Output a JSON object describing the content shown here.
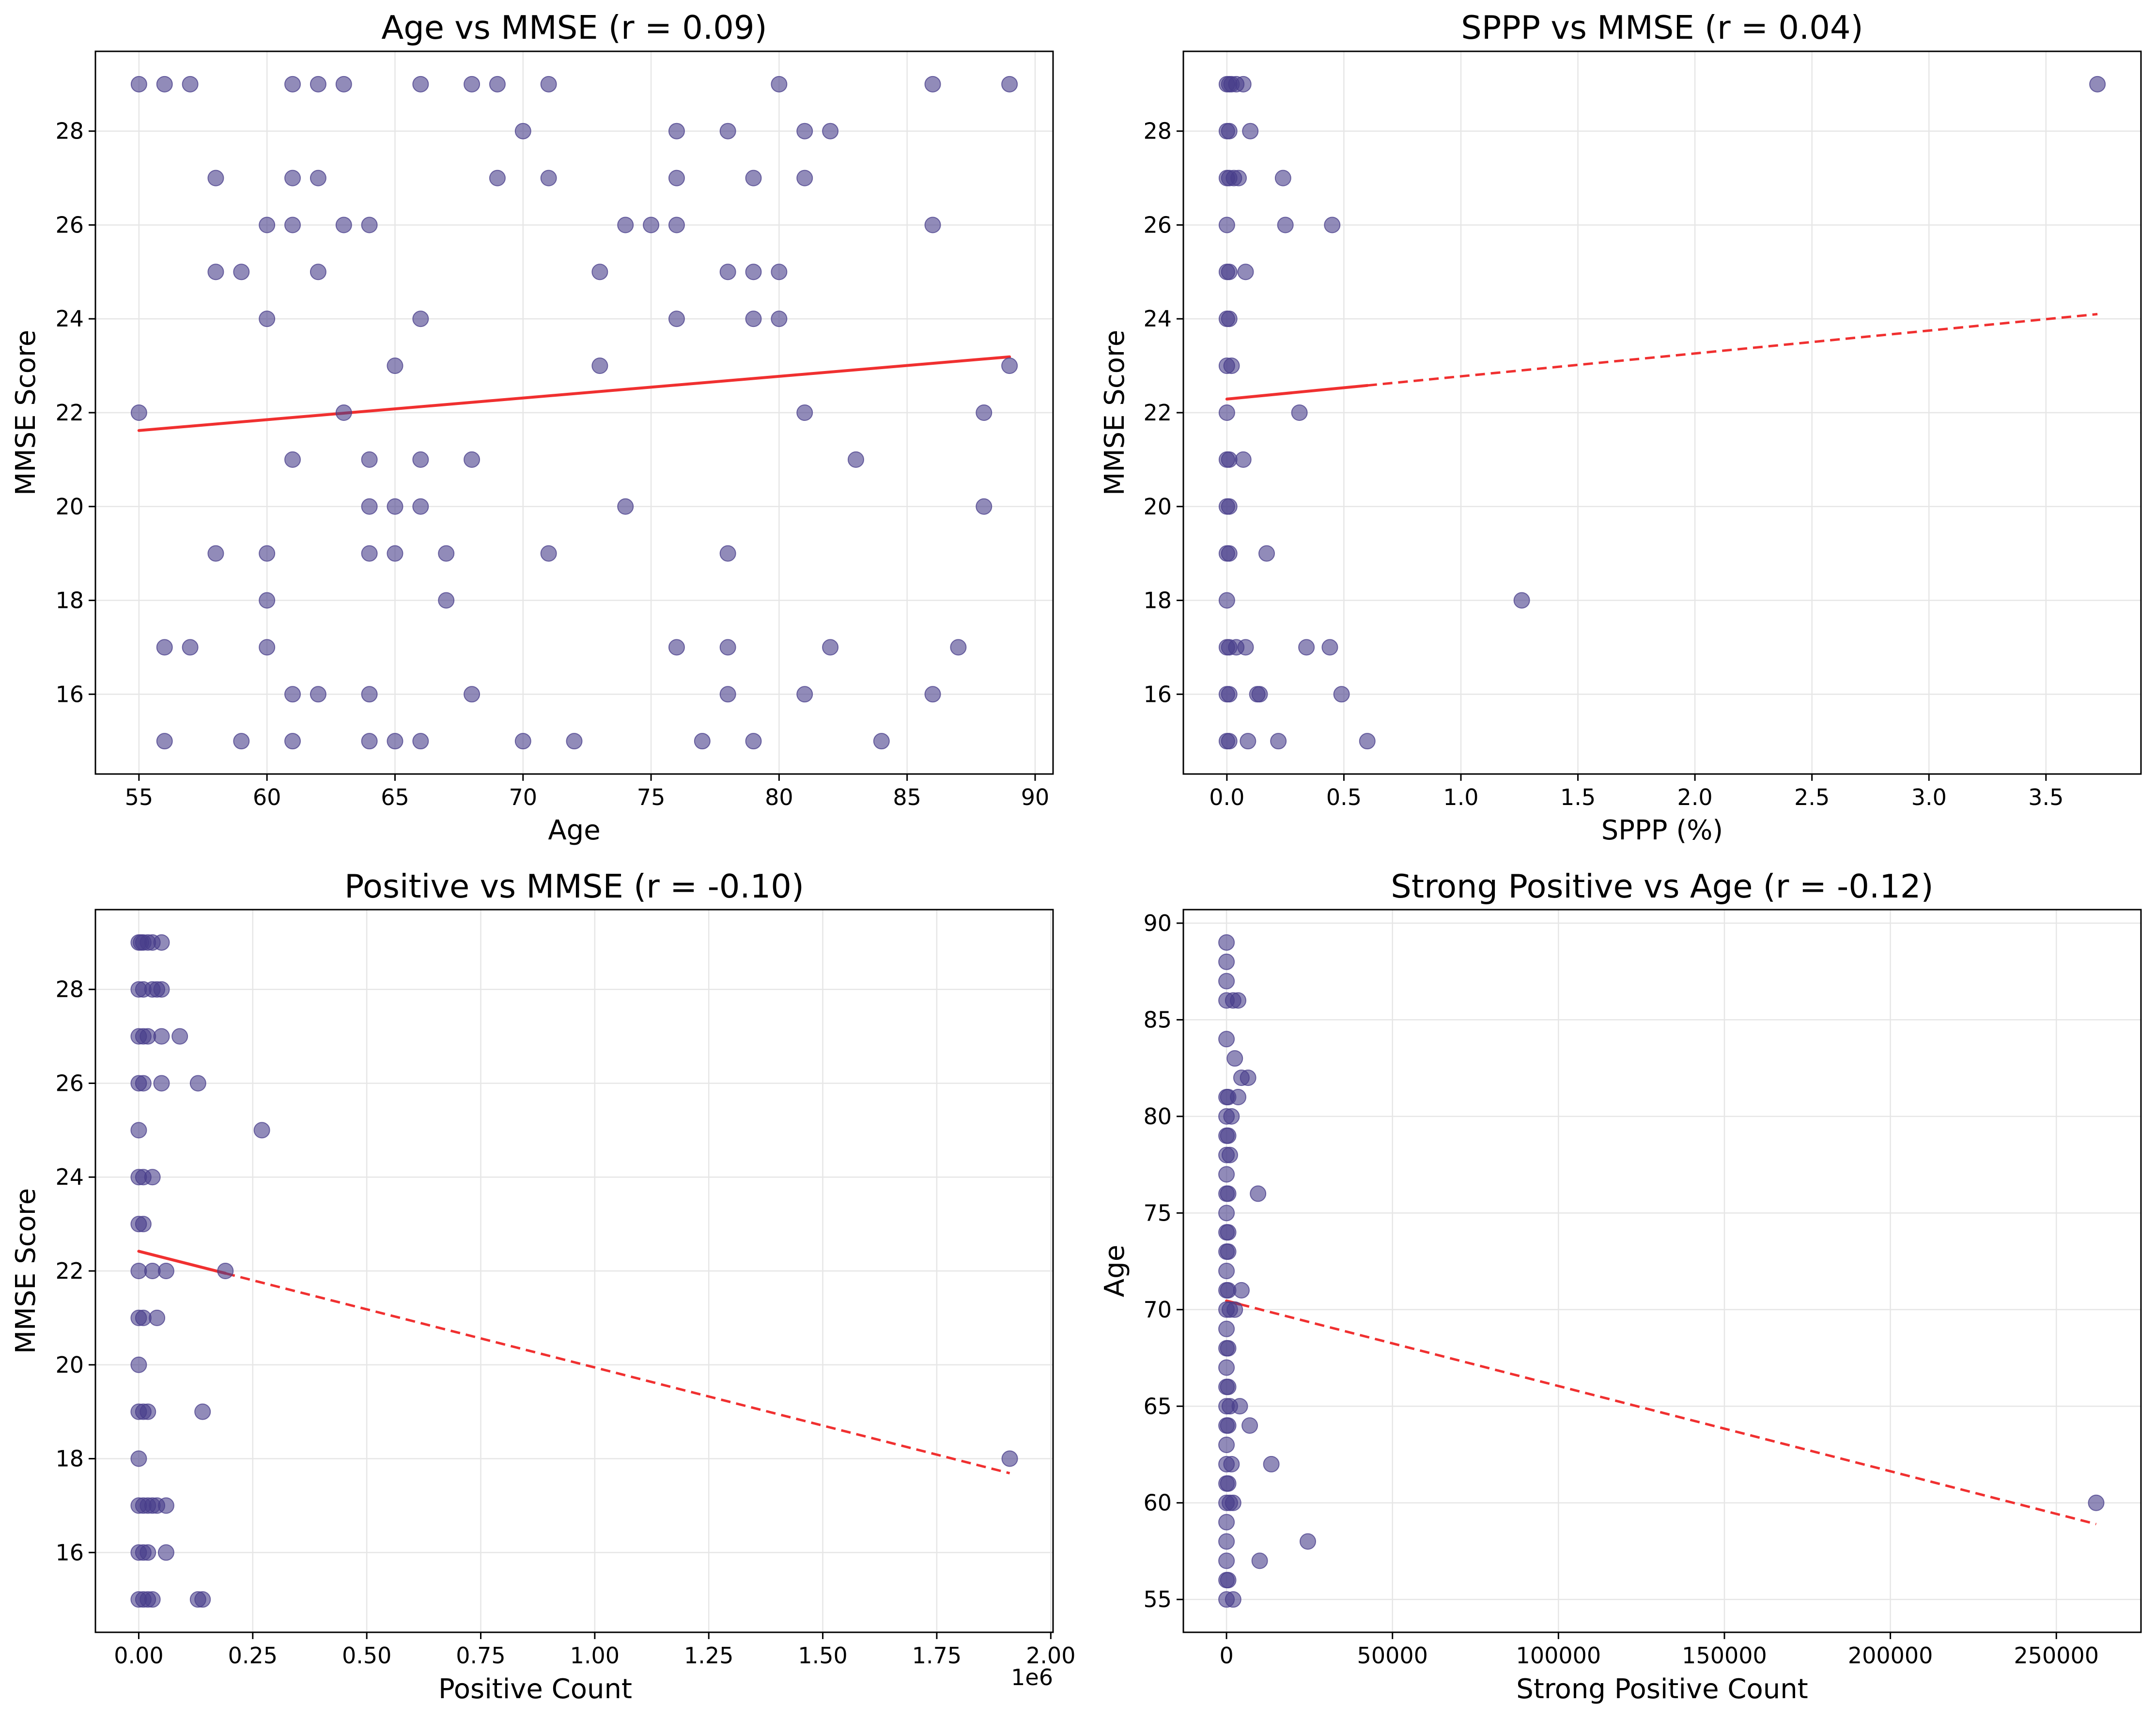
{
  "colors": {
    "point": "#483D8B",
    "trend": "#F03030",
    "grid": "#e6e6e6",
    "frame": "#000000"
  },
  "chart_data": [
    {
      "type": "scatter",
      "title": "Age vs MMSE (r = 0.09)",
      "xlabel": "Age",
      "ylabel": "MMSE Score",
      "xlim": [
        53.3,
        90.7
      ],
      "ylim": [
        14.3,
        29.7
      ],
      "xticks": [
        55,
        60,
        65,
        70,
        75,
        80,
        85,
        90
      ],
      "xtick_labels": [
        "55",
        "60",
        "65",
        "70",
        "75",
        "80",
        "85",
        "90"
      ],
      "yticks": [
        16,
        18,
        20,
        22,
        24,
        26,
        28
      ],
      "ytick_labels": [
        "16",
        "18",
        "20",
        "22",
        "24",
        "26",
        "28"
      ],
      "grid": true,
      "trend_solid": [
        [
          55,
          21.62
        ],
        [
          89,
          23.19
        ]
      ],
      "points": [
        [
          55,
          29
        ],
        [
          56,
          29
        ],
        [
          57,
          29
        ],
        [
          61,
          29
        ],
        [
          62,
          29
        ],
        [
          63,
          29
        ],
        [
          66,
          29
        ],
        [
          68,
          29
        ],
        [
          69,
          29
        ],
        [
          71,
          29
        ],
        [
          80,
          29
        ],
        [
          86,
          29
        ],
        [
          89,
          29
        ],
        [
          70,
          28
        ],
        [
          76,
          28
        ],
        [
          78,
          28
        ],
        [
          81,
          28
        ],
        [
          82,
          28
        ],
        [
          58,
          27
        ],
        [
          61,
          27
        ],
        [
          62,
          27
        ],
        [
          69,
          27
        ],
        [
          71,
          27
        ],
        [
          76,
          27
        ],
        [
          79,
          27
        ],
        [
          81,
          27
        ],
        [
          60,
          26
        ],
        [
          61,
          26
        ],
        [
          63,
          26
        ],
        [
          64,
          26
        ],
        [
          74,
          26
        ],
        [
          75,
          26
        ],
        [
          76,
          26
        ],
        [
          86,
          26
        ],
        [
          58,
          25
        ],
        [
          59,
          25
        ],
        [
          62,
          25
        ],
        [
          73,
          25
        ],
        [
          78,
          25
        ],
        [
          79,
          25
        ],
        [
          80,
          25
        ],
        [
          60,
          24
        ],
        [
          66,
          24
        ],
        [
          76,
          24
        ],
        [
          79,
          24
        ],
        [
          80,
          24
        ],
        [
          65,
          23
        ],
        [
          73,
          23
        ],
        [
          89,
          23
        ],
        [
          55,
          22
        ],
        [
          63,
          22
        ],
        [
          81,
          22
        ],
        [
          88,
          22
        ],
        [
          61,
          21
        ],
        [
          64,
          21
        ],
        [
          66,
          21
        ],
        [
          68,
          21
        ],
        [
          83,
          21
        ],
        [
          64,
          20
        ],
        [
          65,
          20
        ],
        [
          66,
          20
        ],
        [
          74,
          20
        ],
        [
          88,
          20
        ],
        [
          58,
          19
        ],
        [
          60,
          19
        ],
        [
          64,
          19
        ],
        [
          65,
          19
        ],
        [
          67,
          19
        ],
        [
          71,
          19
        ],
        [
          78,
          19
        ],
        [
          60,
          18
        ],
        [
          67,
          18
        ],
        [
          56,
          17
        ],
        [
          57,
          17
        ],
        [
          60,
          17
        ],
        [
          76,
          17
        ],
        [
          78,
          17
        ],
        [
          82,
          17
        ],
        [
          87,
          17
        ],
        [
          61,
          16
        ],
        [
          62,
          16
        ],
        [
          64,
          16
        ],
        [
          68,
          16
        ],
        [
          78,
          16
        ],
        [
          81,
          16
        ],
        [
          86,
          16
        ],
        [
          56,
          15
        ],
        [
          59,
          15
        ],
        [
          61,
          15
        ],
        [
          64,
          15
        ],
        [
          65,
          15
        ],
        [
          66,
          15
        ],
        [
          70,
          15
        ],
        [
          72,
          15
        ],
        [
          77,
          15
        ],
        [
          79,
          15
        ],
        [
          84,
          15
        ]
      ]
    },
    {
      "type": "scatter",
      "title": "SPPP vs MMSE (r = 0.04)",
      "xlabel": "SPPP (%)",
      "ylabel": "MMSE Score",
      "xlim": [
        -0.186,
        3.906
      ],
      "ylim": [
        14.3,
        29.7
      ],
      "xticks": [
        0,
        0.5,
        1.0,
        1.5,
        2.0,
        2.5,
        3.0,
        3.5
      ],
      "xtick_labels": [
        "0.0",
        "0.5",
        "1.0",
        "1.5",
        "2.0",
        "2.5",
        "3.0",
        "3.5"
      ],
      "yticks": [
        16,
        18,
        20,
        22,
        24,
        26,
        28
      ],
      "ytick_labels": [
        "16",
        "18",
        "20",
        "22",
        "24",
        "26",
        "28"
      ],
      "grid": true,
      "trend_solid": [
        [
          0,
          22.29
        ],
        [
          0.6,
          22.58
        ]
      ],
      "trend_dashed": [
        [
          0.6,
          22.58
        ],
        [
          3.72,
          24.1
        ]
      ],
      "points": [
        [
          0,
          29
        ],
        [
          0.01,
          29
        ],
        [
          0.02,
          29
        ],
        [
          0.04,
          29
        ],
        [
          0.07,
          29
        ],
        [
          3.72,
          29
        ],
        [
          0,
          28
        ],
        [
          0.01,
          28
        ],
        [
          0.1,
          28
        ],
        [
          0,
          27
        ],
        [
          0.01,
          27
        ],
        [
          0.03,
          27
        ],
        [
          0.05,
          27
        ],
        [
          0.24,
          27
        ],
        [
          0,
          26
        ],
        [
          0.25,
          26
        ],
        [
          0.45,
          26
        ],
        [
          0,
          25
        ],
        [
          0.01,
          25
        ],
        [
          0.08,
          25
        ],
        [
          0,
          24
        ],
        [
          0.01,
          24
        ],
        [
          0,
          23
        ],
        [
          0.02,
          23
        ],
        [
          0,
          22
        ],
        [
          0.31,
          22
        ],
        [
          0,
          21
        ],
        [
          0.01,
          21
        ],
        [
          0.07,
          21
        ],
        [
          0,
          20
        ],
        [
          0.01,
          20
        ],
        [
          0,
          19
        ],
        [
          0.01,
          19
        ],
        [
          0.17,
          19
        ],
        [
          0,
          18
        ],
        [
          1.26,
          18
        ],
        [
          0,
          17
        ],
        [
          0.01,
          17
        ],
        [
          0.04,
          17
        ],
        [
          0.08,
          17
        ],
        [
          0.34,
          17
        ],
        [
          0.44,
          17
        ],
        [
          0,
          16
        ],
        [
          0.01,
          16
        ],
        [
          0.13,
          16
        ],
        [
          0.14,
          16
        ],
        [
          0.49,
          16
        ],
        [
          0,
          15
        ],
        [
          0.01,
          15
        ],
        [
          0.09,
          15
        ],
        [
          0.22,
          15
        ],
        [
          0.6,
          15
        ]
      ]
    },
    {
      "type": "scatter",
      "title": "Positive vs MMSE (r = -0.10)",
      "xlabel": "Positive Count",
      "ylabel": "MMSE Score",
      "x_offset_label": "1e6",
      "xlim": [
        -0.095,
        2.005
      ],
      "ylim": [
        14.3,
        29.7
      ],
      "xticks": [
        0,
        0.25,
        0.5,
        0.75,
        1.0,
        1.25,
        1.5,
        1.75,
        2.0
      ],
      "xtick_labels": [
        "0.00",
        "0.25",
        "0.50",
        "0.75",
        "1.00",
        "1.25",
        "1.50",
        "1.75",
        "2.00"
      ],
      "yticks": [
        16,
        18,
        20,
        22,
        24,
        26,
        28
      ],
      "ytick_labels": [
        "16",
        "18",
        "20",
        "22",
        "24",
        "26",
        "28"
      ],
      "grid": true,
      "trend_solid": [
        [
          0,
          22.42
        ],
        [
          0.19,
          21.95
        ]
      ],
      "trend_dashed": [
        [
          0.19,
          21.95
        ],
        [
          1.91,
          17.69
        ]
      ],
      "points": [
        [
          0,
          29
        ],
        [
          0.005,
          29
        ],
        [
          0.01,
          29
        ],
        [
          0.02,
          29
        ],
        [
          0.03,
          29
        ],
        [
          0.05,
          29
        ],
        [
          0,
          28
        ],
        [
          0.01,
          28
        ],
        [
          0.03,
          28
        ],
        [
          0.04,
          28
        ],
        [
          0.05,
          28
        ],
        [
          0,
          27
        ],
        [
          0.01,
          27
        ],
        [
          0.02,
          27
        ],
        [
          0.05,
          27
        ],
        [
          0.09,
          27
        ],
        [
          0,
          26
        ],
        [
          0.01,
          26
        ],
        [
          0.05,
          26
        ],
        [
          0.13,
          26
        ],
        [
          0,
          25
        ],
        [
          0.27,
          25
        ],
        [
          0,
          24
        ],
        [
          0.01,
          24
        ],
        [
          0.03,
          24
        ],
        [
          0,
          23
        ],
        [
          0.01,
          23
        ],
        [
          0,
          22
        ],
        [
          0.03,
          22
        ],
        [
          0.06,
          22
        ],
        [
          0.19,
          22
        ],
        [
          0,
          21
        ],
        [
          0.01,
          21
        ],
        [
          0.04,
          21
        ],
        [
          0,
          20
        ],
        [
          0,
          19
        ],
        [
          0.01,
          19
        ],
        [
          0.02,
          19
        ],
        [
          0.14,
          19
        ],
        [
          0,
          18
        ],
        [
          1.91,
          18
        ],
        [
          0,
          17
        ],
        [
          0.01,
          17
        ],
        [
          0.02,
          17
        ],
        [
          0.03,
          17
        ],
        [
          0.04,
          17
        ],
        [
          0.06,
          17
        ],
        [
          0,
          16
        ],
        [
          0.01,
          16
        ],
        [
          0.02,
          16
        ],
        [
          0.06,
          16
        ],
        [
          0,
          15
        ],
        [
          0.01,
          15
        ],
        [
          0.02,
          15
        ],
        [
          0.03,
          15
        ],
        [
          0.13,
          15
        ],
        [
          0.14,
          15
        ]
      ]
    },
    {
      "type": "scatter",
      "title": "Strong Positive vs Age (r = -0.12)",
      "xlabel": "Strong Positive Count",
      "ylabel": "Age",
      "xlim": [
        -13000,
        275500
      ],
      "ylim": [
        53.3,
        90.7
      ],
      "xticks": [
        0,
        50000,
        100000,
        150000,
        200000,
        250000
      ],
      "xtick_labels": [
        "0",
        "50000",
        "100000",
        "150000",
        "200000",
        "250000"
      ],
      "yticks": [
        55,
        60,
        65,
        70,
        75,
        80,
        85,
        90
      ],
      "ytick_labels": [
        "55",
        "60",
        "65",
        "70",
        "75",
        "80",
        "85",
        "90"
      ],
      "grid": true,
      "trend_solid": [
        [
          0,
          70.45
        ],
        [
          4000,
          70.28
        ]
      ],
      "trend_dashed": [
        [
          4000,
          70.28
        ],
        [
          262000,
          58.9
        ]
      ],
      "points": [
        [
          0,
          89
        ],
        [
          0,
          88
        ],
        [
          0,
          87
        ],
        [
          0,
          86
        ],
        [
          2000,
          86
        ],
        [
          3500,
          86
        ],
        [
          0,
          84
        ],
        [
          2500,
          83
        ],
        [
          4500,
          82
        ],
        [
          6500,
          82
        ],
        [
          3500,
          81
        ],
        [
          0,
          81
        ],
        [
          500,
          81
        ],
        [
          0,
          80
        ],
        [
          1500,
          80
        ],
        [
          0,
          79
        ],
        [
          500,
          79
        ],
        [
          0,
          78
        ],
        [
          1000,
          78
        ],
        [
          0,
          77
        ],
        [
          0,
          76
        ],
        [
          500,
          76
        ],
        [
          9500,
          76
        ],
        [
          0,
          75
        ],
        [
          0,
          74
        ],
        [
          500,
          74
        ],
        [
          0,
          73
        ],
        [
          500,
          73
        ],
        [
          0,
          72
        ],
        [
          0,
          71
        ],
        [
          500,
          71
        ],
        [
          4500,
          71
        ],
        [
          0,
          70
        ],
        [
          1000,
          70
        ],
        [
          2500,
          70
        ],
        [
          0,
          69
        ],
        [
          0,
          68
        ],
        [
          500,
          68
        ],
        [
          0,
          67
        ],
        [
          0,
          66
        ],
        [
          500,
          66
        ],
        [
          0,
          65
        ],
        [
          1000,
          65
        ],
        [
          4000,
          65
        ],
        [
          0,
          64
        ],
        [
          500,
          64
        ],
        [
          7000,
          64
        ],
        [
          0,
          63
        ],
        [
          0,
          62
        ],
        [
          1500,
          62
        ],
        [
          13500,
          62
        ],
        [
          0,
          61
        ],
        [
          500,
          61
        ],
        [
          0,
          60
        ],
        [
          1000,
          60
        ],
        [
          2000,
          60
        ],
        [
          262000,
          60
        ],
        [
          0,
          59
        ],
        [
          0,
          58
        ],
        [
          24500,
          58
        ],
        [
          0,
          57
        ],
        [
          10000,
          57
        ],
        [
          0,
          56
        ],
        [
          500,
          56
        ],
        [
          0,
          55
        ],
        [
          2000,
          55
        ]
      ]
    }
  ]
}
